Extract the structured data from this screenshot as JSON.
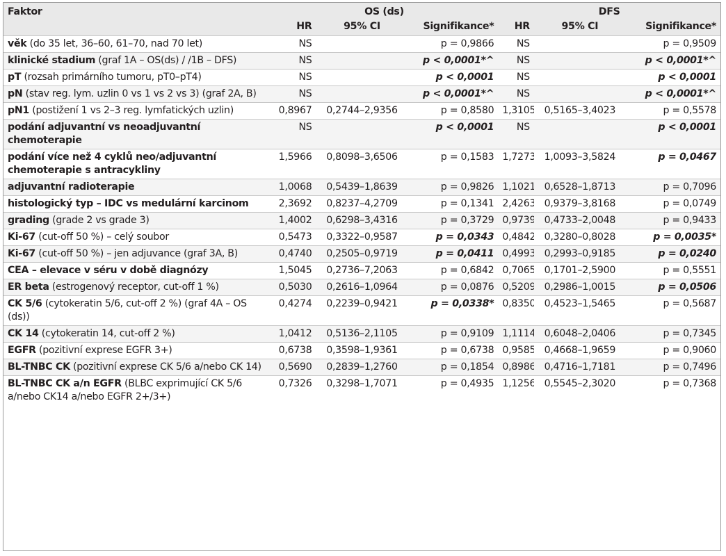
{
  "header": {
    "faktor": "Faktor",
    "os_group": "OS (ds)",
    "dfs_group": "DFS",
    "hr": "HR",
    "ci": "95% CI",
    "sig": "Signifikance*"
  },
  "rows": [
    {
      "bold": "věk",
      "rest": " (do 35 let, 36–60, 61–70, nad 70 let)",
      "os_hr": "NS",
      "os_ci": "",
      "os_sig": "p = 0,9866",
      "os_sig_b": false,
      "dfs_hr": "NS",
      "dfs_ci": "",
      "dfs_sig": "p = 0,9509",
      "dfs_sig_b": false
    },
    {
      "bold": "klinické stadium",
      "rest": " (graf 1A – OS(ds) / /1B – DFS)",
      "os_hr": "NS",
      "os_ci": "",
      "os_sig": "p < 0,0001*^",
      "os_sig_b": true,
      "dfs_hr": "NS",
      "dfs_ci": "",
      "dfs_sig": "p < 0,0001*^",
      "dfs_sig_b": true
    },
    {
      "bold": "pT",
      "rest": " (rozsah primárního tumoru, pT0–pT4)",
      "os_hr": "NS",
      "os_ci": "",
      "os_sig": "p < 0,0001",
      "os_sig_b": true,
      "dfs_hr": "NS",
      "dfs_ci": "",
      "dfs_sig": "p < 0,0001",
      "dfs_sig_b": true
    },
    {
      "bold": "pN",
      "rest": " (stav reg. lym. uzlin 0 vs 1 vs 2 vs 3) (graf 2A, B)",
      "os_hr": "NS",
      "os_ci": "",
      "os_sig": "p < 0,0001*^",
      "os_sig_b": true,
      "dfs_hr": "NS",
      "dfs_ci": "",
      "dfs_sig": "p < 0,0001*^",
      "dfs_sig_b": true
    },
    {
      "bold": "pN1",
      "rest": " (postižení 1 vs 2–3 reg. lymfatických uzlin)",
      "os_hr": "0,8967",
      "os_ci": "0,2744–2,9356",
      "os_sig": "p = 0,8580",
      "os_sig_b": false,
      "dfs_hr": "1,3105",
      "dfs_ci": "0,5165–3,4023",
      "dfs_sig": "p = 0,5578",
      "dfs_sig_b": false
    },
    {
      "bold": "podání adjuvantní vs neoadjuvantní chemoterapie",
      "rest": "",
      "os_hr": "NS",
      "os_ci": "",
      "os_sig": "p < 0,0001",
      "os_sig_b": true,
      "dfs_hr": "NS",
      "dfs_ci": "",
      "dfs_sig": "p < 0,0001",
      "dfs_sig_b": true
    },
    {
      "bold": "podání více než 4 cyklů neo/adjuvantní chemoterapie s antracykliny",
      "rest": "",
      "os_hr": "1,5966",
      "os_ci": "0,8098–3,6506",
      "os_sig": "p = 0,1583",
      "os_sig_b": false,
      "dfs_hr": "1,7273",
      "dfs_ci": "1,0093–3,5824",
      "dfs_sig": "p = 0,0467",
      "dfs_sig_b": true
    },
    {
      "bold": "adjuvantní radioterapie",
      "rest": "",
      "os_hr": "1,0068",
      "os_ci": "0,5439–1,8639",
      "os_sig": "p = 0,9826",
      "os_sig_b": false,
      "dfs_hr": "1,1021",
      "dfs_ci": "0,6528–1,8713",
      "dfs_sig": "p = 0,7096",
      "dfs_sig_b": false
    },
    {
      "bold": "histologický typ – IDC vs medulární karcinom",
      "rest": "",
      "os_hr": "2,3692",
      "os_ci": "0,8237–4,2709",
      "os_sig": "p = 0,1341",
      "os_sig_b": false,
      "dfs_hr": "2,4263",
      "dfs_ci": "0,9379–3,8168",
      "dfs_sig": "p = 0,0749",
      "dfs_sig_b": false
    },
    {
      "bold": "grading",
      "rest": " (grade 2 vs grade 3)",
      "os_hr": "1,4002",
      "os_ci": "0,6298–3,4316",
      "os_sig": "p = 0,3729",
      "os_sig_b": false,
      "dfs_hr": "0,9739",
      "dfs_ci": "0,4733–2,0048",
      "dfs_sig": "p = 0,9433",
      "dfs_sig_b": false
    },
    {
      "bold": "Ki-67",
      "rest": " (cut-off 50 %) – celý soubor",
      "os_hr": "0,5473",
      "os_ci": "0,3322–0,9587",
      "os_sig": "p = 0,0343",
      "os_sig_b": true,
      "dfs_hr": "0,4842",
      "dfs_ci": "0,3280–0,8028",
      "dfs_sig": "p = 0,0035*",
      "dfs_sig_b": true
    },
    {
      "bold": "Ki-67",
      "rest": " (cut-off 50 %) – jen adjuvance (graf 3A, B)",
      "os_hr": "0,4740",
      "os_ci": "0,2505–0,9719",
      "os_sig": "p = 0,0411",
      "os_sig_b": true,
      "dfs_hr": "0,4993",
      "dfs_ci": "0,2993–0,9185",
      "dfs_sig": "p = 0,0240",
      "dfs_sig_b": true
    },
    {
      "bold": "CEA – elevace v séru v době diagnózy",
      "rest": "",
      "os_hr": "1,5045",
      "os_ci": "0,2736–7,2063",
      "os_sig": "p = 0,6842",
      "os_sig_b": false,
      "dfs_hr": "0,7065",
      "dfs_ci": "0,1701–2,5900",
      "dfs_sig": "p = 0,5551",
      "dfs_sig_b": false
    },
    {
      "bold": "ER beta",
      "rest": " (estrogenový receptor, cut-off 1 %)",
      "os_hr": "0,5030",
      "os_ci": "0,2616–1,0964",
      "os_sig": "p = 0,0876",
      "os_sig_b": false,
      "dfs_hr": "0,5209",
      "dfs_ci": "0,2986–1,0015",
      "dfs_sig": "p = 0,0506",
      "dfs_sig_b": true
    },
    {
      "bold": "CK 5/6",
      "rest": " (cytokeratin 5/6, cut-off 2 %) (graf 4A – OS (ds))",
      "os_hr": "0,4274",
      "os_ci": "0,2239–0,9421",
      "os_sig": "p = 0,0338*",
      "os_sig_b": true,
      "dfs_hr": "0,8350",
      "dfs_ci": "0,4523–1,5465",
      "dfs_sig": "p = 0,5687",
      "dfs_sig_b": false
    },
    {
      "bold": "CK 14",
      "rest": " (cytokeratin 14, cut-off 2 %)",
      "os_hr": "1,0412",
      "os_ci": "0,5136–2,1105",
      "os_sig": "p = 0,9109",
      "os_sig_b": false,
      "dfs_hr": "1,1114",
      "dfs_ci": "0,6048–2,0406",
      "dfs_sig": "p = 0,7345",
      "dfs_sig_b": false
    },
    {
      "bold": "EGFR",
      "rest": " (pozitivní exprese EGFR 3+)",
      "os_hr": "0,6738",
      "os_ci": "0,3598–1,9361",
      "os_sig": "p = 0,6738",
      "os_sig_b": false,
      "dfs_hr": "0,9585",
      "dfs_ci": "0,4668–1,9659",
      "dfs_sig": "p = 0,9060",
      "dfs_sig_b": false
    },
    {
      "bold": "BL-TNBC CK",
      "rest": " (pozitivní exprese CK 5/6 a/nebo CK 14)",
      "os_hr": "0,5690",
      "os_ci": "0,2839–1,2760",
      "os_sig": "p = 0,1854",
      "os_sig_b": false,
      "dfs_hr": "0,8986",
      "dfs_ci": "0,4716–1,7181",
      "dfs_sig": "p = 0,7496",
      "dfs_sig_b": false
    },
    {
      "bold": "BL-TNBC CK a/n EGFR",
      "rest": " (BLBC exprimující CK 5/6 a/nebo CK14 a/nebo EGFR 2+/3+)",
      "os_hr": "0,7326",
      "os_ci": "0,3298–1,7071",
      "os_sig": "p = 0,4935",
      "os_sig_b": false,
      "dfs_hr": "1,1256",
      "dfs_ci": "0,5545–2,3020",
      "dfs_sig": "p = 0,7368",
      "dfs_sig_b": false
    }
  ]
}
